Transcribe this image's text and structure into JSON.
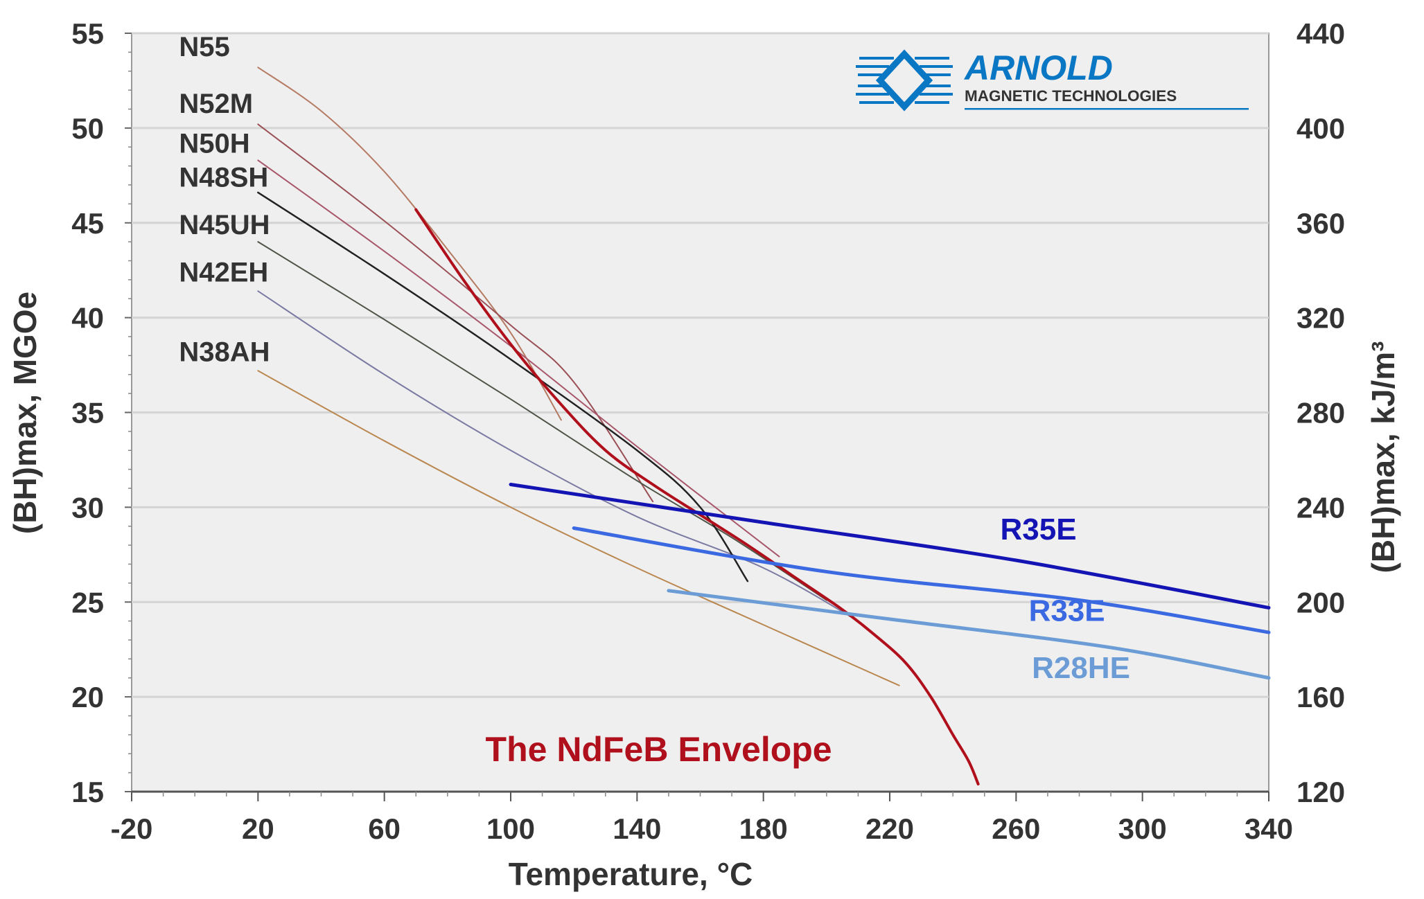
{
  "chart_data": {
    "type": "line",
    "title": "",
    "xlabel": "Temperature, °C",
    "ylabel": "(BH)max, MGOe",
    "ylabel_right": "(BH)max, kJ/m³",
    "xlim": [
      -20,
      350
    ],
    "ylim": [
      15,
      55
    ],
    "ylim_right": [
      120,
      440
    ],
    "x_ticks": [
      "-20",
      "20",
      "60",
      "100",
      "140",
      "180",
      "220",
      "260",
      "300",
      "340"
    ],
    "y_ticks": [
      "15",
      "20",
      "25",
      "30",
      "35",
      "40",
      "45",
      "50",
      "55"
    ],
    "y_ticks_right": [
      "120",
      "160",
      "200",
      "240",
      "280",
      "320",
      "360",
      "400",
      "440"
    ],
    "grid": true,
    "background": "#efefef",
    "series": [
      {
        "name": "N55",
        "color": "#b57a62",
        "width": 2,
        "points": [
          [
            20,
            53.2
          ],
          [
            40,
            50.9
          ],
          [
            60,
            47.7
          ],
          [
            80,
            43.6
          ],
          [
            100,
            39.2
          ],
          [
            116,
            34.6
          ]
        ]
      },
      {
        "name": "N52M",
        "color": "#9a4f55",
        "width": 2,
        "points": [
          [
            20,
            50.2
          ],
          [
            60,
            45.1
          ],
          [
            100,
            39.6
          ],
          [
            120,
            36.6
          ],
          [
            145,
            30.3
          ]
        ]
      },
      {
        "name": "N50H",
        "color": "#a8566a",
        "width": 2,
        "points": [
          [
            20,
            48.3
          ],
          [
            60,
            43.5
          ],
          [
            100,
            38.5
          ],
          [
            140,
            33.2
          ],
          [
            185,
            27.4
          ]
        ]
      },
      {
        "name": "N48SH",
        "color": "#222222",
        "width": 2.5,
        "points": [
          [
            20,
            46.6
          ],
          [
            60,
            42.3
          ],
          [
            100,
            37.8
          ],
          [
            140,
            33
          ],
          [
            160,
            30
          ],
          [
            175,
            26.1
          ]
        ]
      },
      {
        "name": "N45UH",
        "color": "#4e5548",
        "width": 2,
        "points": [
          [
            20,
            44
          ],
          [
            60,
            39.9
          ],
          [
            100,
            35.7
          ],
          [
            140,
            31.4
          ],
          [
            170,
            28.4
          ],
          [
            200,
            25.1
          ]
        ]
      },
      {
        "name": "N42EH",
        "color": "#7b7aa2",
        "width": 2,
        "points": [
          [
            20,
            41.4
          ],
          [
            60,
            37
          ],
          [
            100,
            33
          ],
          [
            140,
            29.5
          ],
          [
            180,
            26.8
          ],
          [
            210,
            24
          ]
        ]
      },
      {
        "name": "N38AH",
        "color": "#b9874f",
        "width": 2,
        "points": [
          [
            20,
            37.2
          ],
          [
            60,
            33.5
          ],
          [
            100,
            30
          ],
          [
            140,
            26.8
          ],
          [
            180,
            23.8
          ],
          [
            223,
            20.6
          ]
        ]
      },
      {
        "name": "The NdFeB Envelope",
        "color": "#b0101c",
        "width": 4,
        "points": [
          [
            70,
            45.7
          ],
          [
            85,
            42
          ],
          [
            100,
            38.6
          ],
          [
            115,
            35.6
          ],
          [
            130,
            33
          ],
          [
            145,
            31.2
          ],
          [
            160,
            29.6
          ],
          [
            175,
            28
          ],
          [
            190,
            26.3
          ],
          [
            205,
            24.6
          ],
          [
            215,
            23.3
          ],
          [
            225,
            21.8
          ],
          [
            233,
            20
          ],
          [
            240,
            18
          ],
          [
            245,
            16.6
          ],
          [
            248,
            15.4
          ]
        ]
      },
      {
        "name": "R35E",
        "color": "#1414b4",
        "width": 5,
        "points": [
          [
            100,
            31.2
          ],
          [
            180,
            29.2
          ],
          [
            260,
            27.2
          ],
          [
            340,
            24.7
          ]
        ]
      },
      {
        "name": "R33E",
        "color": "#3a69e2",
        "width": 5,
        "points": [
          [
            120,
            28.9
          ],
          [
            200,
            26.6
          ],
          [
            280,
            25.1
          ],
          [
            340,
            23.4
          ]
        ]
      },
      {
        "name": "R28HE",
        "color": "#6b9cd6",
        "width": 5,
        "points": [
          [
            150,
            25.6
          ],
          [
            220,
            24.1
          ],
          [
            290,
            22.6
          ],
          [
            340,
            21
          ]
        ]
      }
    ]
  },
  "logo": {
    "brand": "ARNOLD",
    "tagline": "MAGNETIC TECHNOLOGIES",
    "color": "#0a77c4"
  }
}
